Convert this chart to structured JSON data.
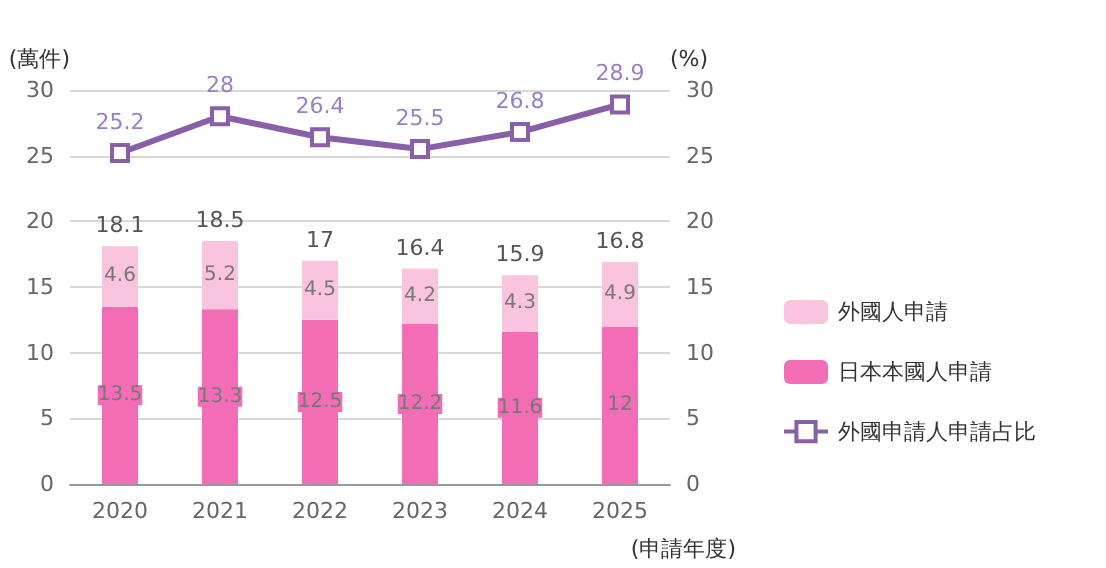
{
  "chart_data": {
    "type": "bar",
    "stacked": true,
    "ylabel": "(萬件)",
    "y2label": "(%)",
    "xlabel": "(申請年度)",
    "categories": [
      "2020",
      "2021",
      "2022",
      "2023",
      "2024",
      "2025"
    ],
    "series": [
      {
        "name": "日本本國人申請",
        "color": "#f26db6",
        "values": [
          13.5,
          13.3,
          12.5,
          12.2,
          11.6,
          12
        ]
      },
      {
        "name": "外國人申請",
        "color": "#fac3de",
        "values": [
          4.6,
          5.2,
          4.5,
          4.2,
          4.3,
          4.9
        ]
      },
      {
        "name": "外國申請人申請占比",
        "type": "line",
        "axis": "y2",
        "color": "#8b5fa8",
        "marker": "square",
        "values": [
          25.2,
          28,
          26.4,
          25.5,
          26.8,
          28.9
        ]
      }
    ],
    "totals": [
      "18.1",
      "18.5",
      "17",
      "16.4",
      "15.9",
      "16.8"
    ],
    "data_labels": true,
    "ylim": [
      0,
      30
    ],
    "yticks": [
      0,
      5,
      10,
      15,
      20,
      25,
      30
    ],
    "y2lim": [
      0,
      30
    ],
    "y2ticks": [
      0,
      5,
      10,
      15,
      20,
      25,
      30
    ],
    "grid": "y",
    "legend": "right"
  }
}
